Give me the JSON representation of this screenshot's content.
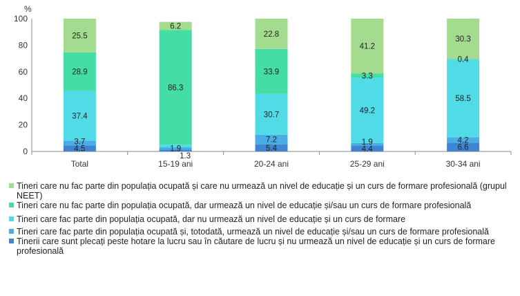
{
  "chart_data": {
    "type": "bar",
    "stacked": true,
    "unit_label": "%",
    "categories": [
      "Total",
      "15-19 ani",
      "20-24 ani",
      "25-29 ani",
      "30-34 ani"
    ],
    "ylim": [
      0,
      100
    ],
    "yticks": [
      0,
      20,
      40,
      60,
      80,
      100
    ],
    "grid": false,
    "legend_position": "bottom",
    "series": [
      {
        "name": "Tinerii care sunt plecați peste hotare la lucru sau în căutare de lucru și nu urmează un nivel de educație și un curs de formare profesională",
        "color": "#3f85cf",
        "values": [
          4.5,
          1.3,
          5.4,
          4.4,
          6.6
        ]
      },
      {
        "name": "Tineri care fac parte din populația ocupată și, totodată, urmează un nivel de educație și/sau un curs de formare profesională",
        "color": "#4aaee6",
        "values": [
          3.7,
          1.9,
          7.2,
          1.9,
          4.2
        ]
      },
      {
        "name": "Tineri care fac parte din populația ocupată, dar nu urmează un nivel de educație și un curs de formare",
        "color": "#50dbe6",
        "values": [
          37.4,
          1.9,
          30.7,
          49.2,
          58.5
        ]
      },
      {
        "name": "Tineri care nu fac parte din populația ocupată, dar urmează un nivel de educație și/sau un curs de formare profesională",
        "color": "#44dda6",
        "values": [
          28.9,
          86.3,
          33.9,
          3.3,
          0.4
        ]
      },
      {
        "name": "Tineri care nu fac parte din populația ocupată și care nu urmează un nivel de educație și un curs de formare profesională (grupul NEET)",
        "color": "#a3dc8e",
        "values": [
          25.5,
          6.2,
          22.8,
          41.2,
          30.3
        ]
      }
    ],
    "data_labels": [
      [
        "4.5",
        "1.3",
        "5.4",
        "4.4",
        "6.6"
      ],
      [
        "3.7",
        "1.9",
        "7.2",
        "1.9",
        "4.2"
      ],
      [
        "37.4",
        "",
        "30.7",
        "49.2",
        "58.5"
      ],
      [
        "28.9",
        "86.3",
        "33.9",
        "3.3",
        "0.4"
      ],
      [
        "25.5",
        "6.2",
        "22.8",
        "41.2",
        "30.3"
      ]
    ],
    "legend_order": [
      4,
      3,
      2,
      1,
      0
    ]
  }
}
